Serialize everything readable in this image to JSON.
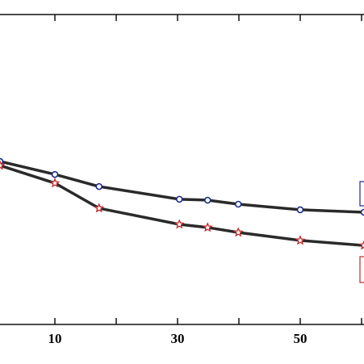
{
  "chart_data": {
    "type": "line",
    "x": [
      1.05,
      10,
      17.2,
      30.3,
      34.9,
      39.9,
      50,
      60.4
    ],
    "series": [
      {
        "color": "#1a2a8a",
        "marker": "circle",
        "values": [
          52.6,
          48.4,
          44.5,
          40.4,
          40.1,
          38.8,
          37.0,
          36.2
        ]
      },
      {
        "color": "#c0282a",
        "marker": "star",
        "values": [
          51.3,
          45.6,
          37.5,
          32.3,
          31.3,
          29.7,
          27.1,
          25.5
        ]
      }
    ],
    "line_color": "#2a2a2a",
    "xlim": [
      1.05,
      60.4
    ],
    "ylim": [
      0,
      100
    ],
    "xticks": [
      10,
      30,
      50
    ],
    "xminor_ticks": [
      20,
      40,
      60
    ]
  }
}
